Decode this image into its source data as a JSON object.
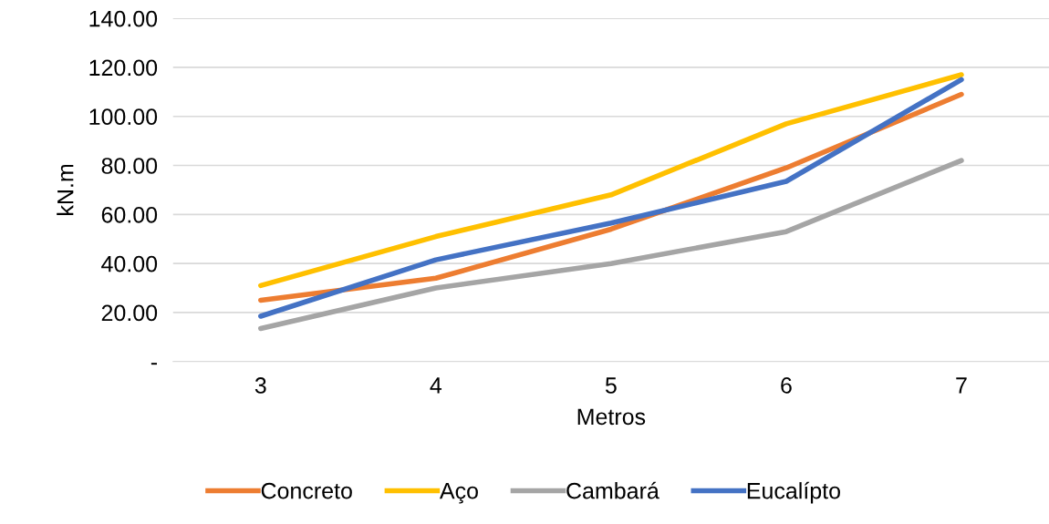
{
  "chart_data": {
    "type": "line",
    "xlabel": "Metros",
    "ylabel": "kN.m",
    "categories": [
      "3",
      "4",
      "5",
      "6",
      "7"
    ],
    "series": [
      {
        "name": "Concreto",
        "color": "#ed7d31",
        "values": [
          25,
          34,
          54,
          79,
          109
        ]
      },
      {
        "name": "Aço",
        "color": "#ffc000",
        "values": [
          31,
          51,
          68,
          97,
          117
        ]
      },
      {
        "name": "Cambará",
        "color": "#a5a5a5",
        "values": [
          13.5,
          30,
          40,
          53,
          82
        ]
      },
      {
        "name": "Eucalípto",
        "color": "#4472c4",
        "values": [
          18.5,
          41.5,
          56.5,
          73.5,
          115
        ]
      }
    ],
    "ylim": [
      0,
      140
    ],
    "yticks": [
      {
        "value": 0,
        "label": "-"
      },
      {
        "value": 20,
        "label": "20.00"
      },
      {
        "value": 40,
        "label": "40.00"
      },
      {
        "value": 60,
        "label": "60.00"
      },
      {
        "value": 80,
        "label": "80.00"
      },
      {
        "value": 100,
        "label": "100.00"
      },
      {
        "value": 120,
        "label": "120.00"
      },
      {
        "value": 140,
        "label": "140.00"
      }
    ],
    "grid": "y",
    "legend": "bottom",
    "marker": "none",
    "line_style": "solid"
  }
}
